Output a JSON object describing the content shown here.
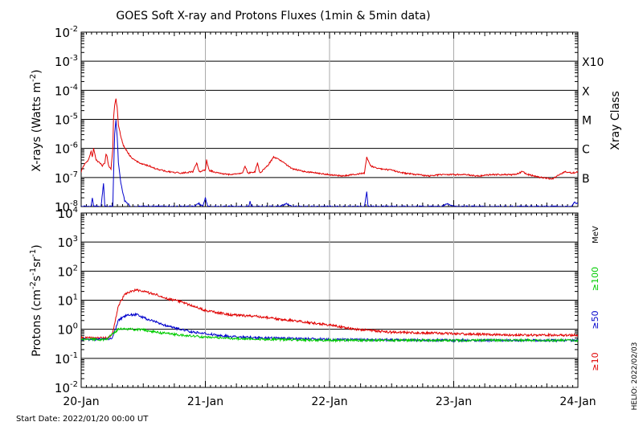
{
  "title": "GOES Soft X-ray and Protons Fluxes   (1min & 5min data)",
  "footer": {
    "start_date": "Start Date: 2022/01/20 00:00 UT",
    "helio": "HELIO: 2022/02/03"
  },
  "colors": {
    "red": "#e00000",
    "blue": "#0000cc",
    "green": "#00cc00",
    "grid": "#000000",
    "day_grid": "#aaaaaa",
    "background": "#ffffff"
  },
  "chart_data": [
    {
      "type": "line",
      "panel": "xray",
      "ylabel_text": "X-rays (Watts m",
      "ylabel_sup": "-2",
      "ylabel_close": ")",
      "yscale": "log",
      "ylim_exp": [
        -8,
        -2
      ],
      "ytick_exponents": [
        -8,
        -7,
        -6,
        -5,
        -4,
        -3,
        -2
      ],
      "right_axis_label": "Xray Class",
      "class_labels": [
        {
          "label": "B",
          "exp": -7
        },
        {
          "label": "C",
          "exp": -6
        },
        {
          "label": "M",
          "exp": -5
        },
        {
          "label": "X",
          "exp": -4
        },
        {
          "label": "X10",
          "exp": -3
        }
      ],
      "x_days": [
        0,
        4
      ],
      "series": [
        {
          "color": "red",
          "points": [
            [
              0,
              -6.8
            ],
            [
              0.03,
              -6.5
            ],
            [
              0.06,
              -6.4
            ],
            [
              0.08,
              -6.1
            ],
            [
              0.09,
              -6.3
            ],
            [
              0.1,
              -6.0
            ],
            [
              0.12,
              -6.4
            ],
            [
              0.15,
              -6.5
            ],
            [
              0.17,
              -6.6
            ],
            [
              0.19,
              -6.5
            ],
            [
              0.2,
              -6.2
            ],
            [
              0.21,
              -6.3
            ],
            [
              0.22,
              -6.6
            ],
            [
              0.24,
              -6.7
            ],
            [
              0.255,
              -6.0
            ],
            [
              0.26,
              -5.0
            ],
            [
              0.27,
              -4.5
            ],
            [
              0.28,
              -4.3
            ],
            [
              0.29,
              -4.6
            ],
            [
              0.3,
              -5.2
            ],
            [
              0.32,
              -5.6
            ],
            [
              0.34,
              -5.9
            ],
            [
              0.37,
              -6.1
            ],
            [
              0.4,
              -6.3
            ],
            [
              0.45,
              -6.45
            ],
            [
              0.5,
              -6.55
            ],
            [
              0.55,
              -6.6
            ],
            [
              0.6,
              -6.7
            ],
            [
              0.7,
              -6.8
            ],
            [
              0.8,
              -6.85
            ],
            [
              0.9,
              -6.8
            ],
            [
              0.93,
              -6.5
            ],
            [
              0.95,
              -6.8
            ],
            [
              1.0,
              -6.75
            ],
            [
              1.01,
              -6.4
            ],
            [
              1.03,
              -6.75
            ],
            [
              1.1,
              -6.85
            ],
            [
              1.2,
              -6.9
            ],
            [
              1.3,
              -6.85
            ],
            [
              1.32,
              -6.6
            ],
            [
              1.34,
              -6.85
            ],
            [
              1.4,
              -6.8
            ],
            [
              1.42,
              -6.5
            ],
            [
              1.44,
              -6.85
            ],
            [
              1.5,
              -6.6
            ],
            [
              1.55,
              -6.3
            ],
            [
              1.6,
              -6.4
            ],
            [
              1.7,
              -6.7
            ],
            [
              1.8,
              -6.8
            ],
            [
              1.9,
              -6.85
            ],
            [
              2.0,
              -6.9
            ],
            [
              2.1,
              -6.95
            ],
            [
              2.2,
              -6.9
            ],
            [
              2.28,
              -6.85
            ],
            [
              2.3,
              -6.3
            ],
            [
              2.33,
              -6.6
            ],
            [
              2.4,
              -6.7
            ],
            [
              2.5,
              -6.75
            ],
            [
              2.6,
              -6.85
            ],
            [
              2.7,
              -6.9
            ],
            [
              2.8,
              -6.95
            ],
            [
              2.9,
              -6.9
            ],
            [
              3.0,
              -6.9
            ],
            [
              3.1,
              -6.9
            ],
            [
              3.2,
              -6.95
            ],
            [
              3.3,
              -6.9
            ],
            [
              3.4,
              -6.9
            ],
            [
              3.5,
              -6.9
            ],
            [
              3.55,
              -6.8
            ],
            [
              3.6,
              -6.9
            ],
            [
              3.7,
              -7.0
            ],
            [
              3.8,
              -7.05
            ],
            [
              3.85,
              -6.9
            ],
            [
              3.9,
              -6.8
            ],
            [
              3.95,
              -6.85
            ],
            [
              4.0,
              -6.8
            ]
          ]
        },
        {
          "color": "blue",
          "points": [
            [
              0,
              -8.0
            ],
            [
              0.08,
              -8.0
            ],
            [
              0.09,
              -7.7
            ],
            [
              0.1,
              -8.0
            ],
            [
              0.16,
              -8.0
            ],
            [
              0.18,
              -7.2
            ],
            [
              0.19,
              -8.0
            ],
            [
              0.255,
              -8.0
            ],
            [
              0.26,
              -7.0
            ],
            [
              0.27,
              -5.5
            ],
            [
              0.28,
              -5.0
            ],
            [
              0.29,
              -5.6
            ],
            [
              0.3,
              -6.5
            ],
            [
              0.32,
              -7.2
            ],
            [
              0.35,
              -7.8
            ],
            [
              0.4,
              -8.0
            ],
            [
              0.9,
              -8.0
            ],
            [
              0.95,
              -7.9
            ],
            [
              0.98,
              -8.0
            ],
            [
              1.0,
              -7.7
            ],
            [
              1.02,
              -8.0
            ],
            [
              1.35,
              -8.0
            ],
            [
              1.36,
              -7.8
            ],
            [
              1.37,
              -8.0
            ],
            [
              1.6,
              -8.0
            ],
            [
              1.65,
              -7.9
            ],
            [
              1.7,
              -8.0
            ],
            [
              2.28,
              -8.0
            ],
            [
              2.3,
              -7.5
            ],
            [
              2.31,
              -8.0
            ],
            [
              2.9,
              -8.0
            ],
            [
              2.95,
              -7.9
            ],
            [
              3.0,
              -8.0
            ],
            [
              3.95,
              -8.0
            ],
            [
              3.97,
              -7.85
            ],
            [
              4.0,
              -7.9
            ]
          ]
        }
      ]
    },
    {
      "type": "line",
      "panel": "protons",
      "ylabel_text": "Protons (cm",
      "ylabel_sup1": "-2",
      "ylabel_mid1": "s",
      "ylabel_sup2": "-1",
      "ylabel_mid2": "sr",
      "ylabel_sup3": "-1",
      "ylabel_close": ")",
      "yscale": "log",
      "ylim_exp": [
        -2,
        4
      ],
      "ytick_exponents": [
        -2,
        -1,
        0,
        1,
        2,
        3,
        4
      ],
      "threshold_exp": 1,
      "mev_label": "MeV",
      "energy_labels": [
        {
          "label": "≥10",
          "color": "red"
        },
        {
          "label": "≥50",
          "color": "blue"
        },
        {
          "label": "≥100",
          "color": "green"
        }
      ],
      "x_days": [
        0,
        4
      ],
      "xtick_labels": [
        "20-Jan",
        "21-Jan",
        "22-Jan",
        "23-Jan",
        "24-Jan"
      ],
      "series": [
        {
          "name": "≥10",
          "color": "red",
          "points": [
            [
              0,
              -0.3
            ],
            [
              0.2,
              -0.3
            ],
            [
              0.25,
              -0.2
            ],
            [
              0.3,
              0.8
            ],
            [
              0.35,
              1.2
            ],
            [
              0.4,
              1.3
            ],
            [
              0.45,
              1.35
            ],
            [
              0.5,
              1.3
            ],
            [
              0.6,
              1.2
            ],
            [
              0.7,
              1.05
            ],
            [
              0.8,
              0.95
            ],
            [
              0.9,
              0.8
            ],
            [
              1.0,
              0.65
            ],
            [
              1.2,
              0.5
            ],
            [
              1.4,
              0.45
            ],
            [
              1.6,
              0.35
            ],
            [
              1.8,
              0.25
            ],
            [
              2.0,
              0.15
            ],
            [
              2.2,
              0.0
            ],
            [
              2.5,
              -0.1
            ],
            [
              3.0,
              -0.15
            ],
            [
              3.5,
              -0.2
            ],
            [
              4.0,
              -0.2
            ]
          ]
        },
        {
          "name": "≥50",
          "color": "blue",
          "points": [
            [
              0,
              -0.35
            ],
            [
              0.2,
              -0.35
            ],
            [
              0.25,
              -0.3
            ],
            [
              0.3,
              0.3
            ],
            [
              0.35,
              0.45
            ],
            [
              0.4,
              0.5
            ],
            [
              0.45,
              0.5
            ],
            [
              0.5,
              0.4
            ],
            [
              0.6,
              0.25
            ],
            [
              0.7,
              0.1
            ],
            [
              0.8,
              0.0
            ],
            [
              0.9,
              -0.1
            ],
            [
              1.0,
              -0.15
            ],
            [
              1.2,
              -0.25
            ],
            [
              1.5,
              -0.3
            ],
            [
              2.0,
              -0.35
            ],
            [
              2.5,
              -0.37
            ],
            [
              3.0,
              -0.38
            ],
            [
              4.0,
              -0.38
            ]
          ]
        },
        {
          "name": "≥100",
          "color": "green",
          "points": [
            [
              0,
              -0.35
            ],
            [
              0.2,
              -0.35
            ],
            [
              0.3,
              0.0
            ],
            [
              0.35,
              0.02
            ],
            [
              0.4,
              0.0
            ],
            [
              0.5,
              -0.02
            ],
            [
              0.6,
              -0.1
            ],
            [
              0.8,
              -0.2
            ],
            [
              1.0,
              -0.27
            ],
            [
              1.3,
              -0.33
            ],
            [
              1.6,
              -0.35
            ],
            [
              2.0,
              -0.38
            ],
            [
              3.0,
              -0.38
            ],
            [
              4.0,
              -0.38
            ]
          ]
        }
      ]
    }
  ]
}
